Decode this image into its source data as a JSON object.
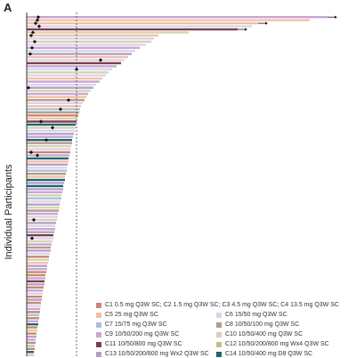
{
  "panel_label": "A",
  "chart_data": {
    "type": "bar",
    "orientation": "horizontal",
    "title": "",
    "xlabel": "",
    "ylabel": "Individual Participants",
    "reference_line": "dashed vertical line",
    "grid": false,
    "legend_position": "bottom-right",
    "series": [
      {
        "name": "C1 0.5 mg Q3W SC; C2 1.5 mg Q3W SC; C3 4.5 mg Q3W SC; C4 13.5 mg Q3W SC",
        "color": "#c58a6e"
      },
      {
        "name": "C5 25 mg Q3W SC",
        "color": "#f0c2a8"
      },
      {
        "name": "C6 15/50 mg Q3W SC",
        "color": "#dcd3ea"
      },
      {
        "name": "C7 15/75 mg Q3W SC",
        "color": "#a8c3d6"
      },
      {
        "name": "C8 10/50/100 mg Q3W SC",
        "color": "#b89a8a"
      },
      {
        "name": "C9 10/50/200 mg Q3W SC",
        "color": "#c9a6d4"
      },
      {
        "name": "C10 10/50/400 mg Q3W SC",
        "color": "#d6d3b2"
      },
      {
        "name": "C11 10/50/800 mg Q3W SC",
        "color": "#7a3f4d"
      },
      {
        "name": "C12 10/50/200/800 mg Wx4 Q3W SC",
        "color": "#c8bc90"
      },
      {
        "name": "C13 10/50/200/800 mg Wx2 Q3W SC",
        "color": "#b3a2c8"
      },
      {
        "name": "C14 10/50/400 mg D8 Q3W SC",
        "color": "#1f6470"
      }
    ],
    "participants": [
      {
        "value": 338,
        "series": 5,
        "marker": 13,
        "arrow": true
      },
      {
        "value": 318,
        "series": 1,
        "marker": 12
      },
      {
        "value": 260,
        "series": 1,
        "marker": 10,
        "arrow": true
      },
      {
        "value": 253,
        "series": 2,
        "marker": 14
      },
      {
        "value": 237,
        "series": 7,
        "arrow": true
      },
      {
        "value": 182,
        "series": 6,
        "marker": 7
      },
      {
        "value": 148,
        "series": 1,
        "marker": 5
      },
      {
        "value": 143,
        "series": 2
      },
      {
        "value": 140,
        "series": 6,
        "marker": 9
      },
      {
        "value": 134,
        "series": 2
      },
      {
        "value": 127,
        "series": 5,
        "marker": 6
      },
      {
        "value": 122,
        "series": 2
      },
      {
        "value": 118,
        "series": 9,
        "marker": 4
      },
      {
        "value": 114,
        "series": 1
      },
      {
        "value": 110,
        "series": 2,
        "marker": 83
      },
      {
        "value": 106,
        "series": 7
      },
      {
        "value": 101,
        "series": 5
      },
      {
        "value": 96,
        "series": 2,
        "marker": 56
      },
      {
        "value": 92,
        "series": 6
      },
      {
        "value": 89,
        "series": 2
      },
      {
        "value": 85,
        "series": 1
      },
      {
        "value": 82,
        "series": 5
      },
      {
        "value": 78,
        "series": 2
      },
      {
        "value": 75,
        "series": 9,
        "marker": 2
      },
      {
        "value": 72,
        "series": 6
      },
      {
        "value": 69,
        "series": 5
      },
      {
        "value": 67,
        "series": 1
      },
      {
        "value": 65,
        "series": 4,
        "marker": 47
      },
      {
        "value": 63,
        "series": 2
      },
      {
        "value": 61,
        "series": 1
      },
      {
        "value": 60,
        "series": 3,
        "marker": 38
      },
      {
        "value": 59,
        "series": 4
      },
      {
        "value": 58,
        "series": 0
      },
      {
        "value": 57,
        "series": 1
      },
      {
        "value": 56,
        "series": 7,
        "marker": 16
      },
      {
        "value": 55,
        "series": 10
      },
      {
        "value": 55,
        "series": 6,
        "marker": 29
      },
      {
        "value": 54,
        "series": 2
      },
      {
        "value": 53,
        "series": 9
      },
      {
        "value": 52,
        "series": 5
      },
      {
        "value": 51,
        "series": 10,
        "marker": 22
      },
      {
        "value": 51,
        "series": 4
      },
      {
        "value": 50,
        "series": 6
      },
      {
        "value": 49,
        "series": 2
      },
      {
        "value": 49,
        "series": 0,
        "marker": 5
      },
      {
        "value": 48,
        "series": 5,
        "marker": 12
      },
      {
        "value": 47,
        "series": 10
      },
      {
        "value": 47,
        "series": 1
      },
      {
        "value": 46,
        "series": 9
      },
      {
        "value": 45,
        "series": 2
      },
      {
        "value": 45,
        "series": 3
      },
      {
        "value": 44,
        "series": 4
      },
      {
        "value": 43,
        "series": 1
      },
      {
        "value": 43,
        "series": 10
      },
      {
        "value": 42,
        "series": 9
      },
      {
        "value": 41,
        "series": 10
      },
      {
        "value": 41,
        "series": 9
      },
      {
        "value": 40,
        "series": 5
      },
      {
        "value": 39,
        "series": 6
      },
      {
        "value": 39,
        "series": 3
      },
      {
        "value": 38,
        "series": 2
      },
      {
        "value": 37,
        "series": 9
      },
      {
        "value": 37,
        "series": 6
      },
      {
        "value": 36,
        "series": 4
      },
      {
        "value": 35,
        "series": 5
      },
      {
        "value": 35,
        "series": 2
      },
      {
        "value": 34,
        "series": 6,
        "marker": 8
      },
      {
        "value": 33,
        "series": 9
      },
      {
        "value": 32,
        "series": 2
      },
      {
        "value": 32,
        "series": 5
      },
      {
        "value": 31,
        "series": 9
      },
      {
        "value": 30,
        "series": 7
      },
      {
        "value": 30,
        "series": 2,
        "marker": 6
      },
      {
        "value": 29,
        "series": 6
      },
      {
        "value": 28,
        "series": 5
      },
      {
        "value": 27,
        "series": 4
      },
      {
        "value": 27,
        "series": 9
      },
      {
        "value": 26,
        "series": 2
      },
      {
        "value": 25,
        "series": 0
      },
      {
        "value": 25,
        "series": 6
      },
      {
        "value": 24,
        "series": 1
      },
      {
        "value": 23,
        "series": 9
      },
      {
        "value": 23,
        "series": 5
      },
      {
        "value": 22,
        "series": 0
      },
      {
        "value": 21,
        "series": 0
      },
      {
        "value": 21,
        "series": 5
      },
      {
        "value": 20,
        "series": 7
      },
      {
        "value": 20,
        "series": 9
      },
      {
        "value": 19,
        "series": 0
      },
      {
        "value": 18,
        "series": 5
      },
      {
        "value": 18,
        "series": 2
      },
      {
        "value": 17,
        "series": 0
      },
      {
        "value": 17,
        "series": 9
      },
      {
        "value": 16,
        "series": 0
      },
      {
        "value": 16,
        "series": 2
      },
      {
        "value": 15,
        "series": 5
      },
      {
        "value": 15,
        "series": 0
      },
      {
        "value": 14,
        "series": 3
      },
      {
        "value": 14,
        "series": 0
      },
      {
        "value": 13,
        "series": 5
      },
      {
        "value": 13,
        "series": 10
      },
      {
        "value": 12,
        "series": 0
      },
      {
        "value": 12,
        "series": 1
      },
      {
        "value": 11,
        "series": 0
      },
      {
        "value": 11,
        "series": 9
      },
      {
        "value": 10,
        "series": 5
      },
      {
        "value": 10,
        "series": 0
      },
      {
        "value": 9,
        "series": 3
      },
      {
        "value": 9,
        "series": 0
      },
      {
        "value": 8,
        "series": 10
      },
      {
        "value": 8,
        "series": 1
      }
    ]
  }
}
